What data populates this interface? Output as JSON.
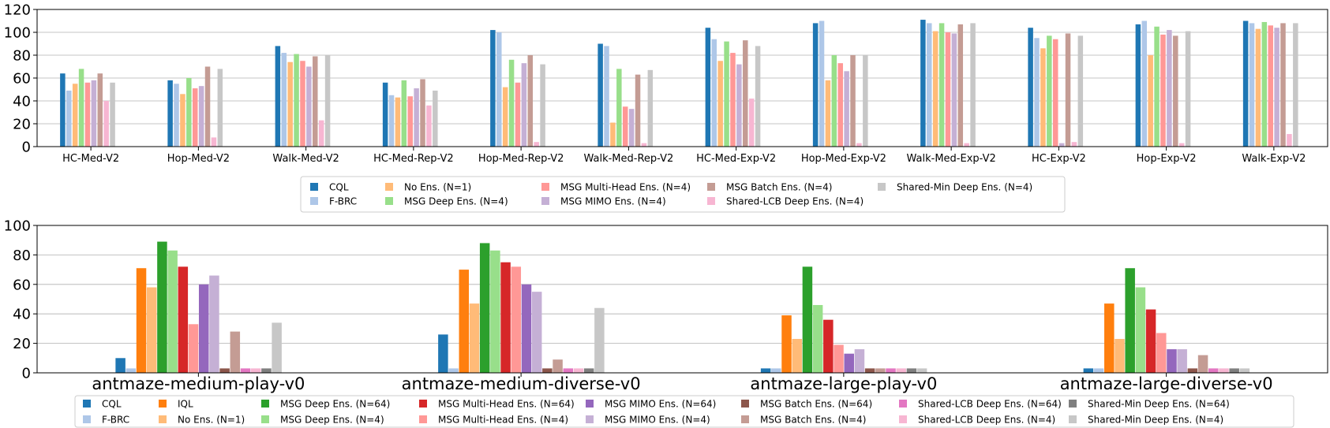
{
  "chart_data": [
    {
      "type": "bar",
      "title": "",
      "xlabel": "",
      "ylabel": "",
      "ylim": [
        0,
        120
      ],
      "yticks": [
        0,
        20,
        40,
        60,
        80,
        100,
        120
      ],
      "grid": true,
      "legend": "bottom-center",
      "categories": [
        "HC-Med-V2",
        "Hop-Med-V2",
        "Walk-Med-V2",
        "HC-Med-Rep-V2",
        "Hop-Med-Rep-V2",
        "Walk-Med-Rep-V2",
        "HC-Med-Exp-V2",
        "Hop-Med-Exp-V2",
        "Walk-Med-Exp-V2",
        "HC-Exp-V2",
        "Hop-Exp-V2",
        "Walk-Exp-V2"
      ],
      "series": [
        {
          "name": "CQL",
          "color": "#1f77b4",
          "values": [
            64,
            58,
            88,
            56,
            102,
            90,
            104,
            108,
            111,
            104,
            107,
            110
          ]
        },
        {
          "name": "F-BRC",
          "color": "#aec7e8",
          "values": [
            49,
            55,
            82,
            45,
            100,
            88,
            94,
            110,
            108,
            95,
            110,
            108
          ]
        },
        {
          "name": "No Ens. (N=1)",
          "color": "#ffbb78",
          "values": [
            55,
            46,
            74,
            43,
            52,
            21,
            75,
            58,
            101,
            86,
            80,
            103
          ]
        },
        {
          "name": "MSG Deep Ens. (N=4)",
          "color": "#98df8a",
          "values": [
            68,
            60,
            81,
            58,
            76,
            68,
            92,
            80,
            108,
            97,
            105,
            109
          ]
        },
        {
          "name": "MSG Multi-Head Ens. (N=4)",
          "color": "#ff9896",
          "values": [
            56,
            51,
            75,
            44,
            56,
            35,
            82,
            73,
            100,
            94,
            98,
            106
          ]
        },
        {
          "name": "MSG MIMO Ens. (N=4)",
          "color": "#c5b0d5",
          "values": [
            58,
            53,
            70,
            51,
            73,
            33,
            72,
            66,
            99,
            3,
            102,
            104
          ]
        },
        {
          "name": "MSG Batch Ens. (N=4)",
          "color": "#c49c94",
          "values": [
            64,
            70,
            79,
            59,
            80,
            63,
            93,
            80,
            107,
            99,
            97,
            108
          ]
        },
        {
          "name": "Shared-LCB Deep Ens. (N=4)",
          "color": "#f7b6d2",
          "values": [
            40,
            8,
            23,
            36,
            4,
            3,
            42,
            3,
            3,
            4,
            3,
            11
          ]
        },
        {
          "name": "Shared-Min Deep Ens. (N=4)",
          "color": "#c7c7c7",
          "values": [
            56,
            68,
            80,
            49,
            72,
            67,
            88,
            80,
            108,
            97,
            101,
            108
          ]
        }
      ]
    },
    {
      "type": "bar",
      "title": "",
      "xlabel": "",
      "ylabel": "",
      "ylim": [
        0,
        100
      ],
      "yticks": [
        0,
        20,
        40,
        60,
        80,
        100
      ],
      "grid": true,
      "legend": "bottom-center",
      "categories": [
        "antmaze-medium-play-v0",
        "antmaze-medium-diverse-v0",
        "antmaze-large-play-v0",
        "antmaze-large-diverse-v0"
      ],
      "series": [
        {
          "name": "CQL",
          "color": "#1f77b4",
          "values": [
            10,
            26,
            3,
            3
          ]
        },
        {
          "name": "F-BRC",
          "color": "#aec7e8",
          "values": [
            3,
            3,
            3,
            3
          ]
        },
        {
          "name": "IQL",
          "color": "#ff7f0e",
          "values": [
            71,
            70,
            39,
            47
          ]
        },
        {
          "name": "No Ens. (N=1)",
          "color": "#ffbb78",
          "values": [
            58,
            47,
            23,
            23
          ]
        },
        {
          "name": "MSG Deep Ens. (N=64)",
          "color": "#2ca02c",
          "values": [
            89,
            88,
            72,
            71
          ]
        },
        {
          "name": "MSG Deep Ens. (N=4)",
          "color": "#98df8a",
          "values": [
            83,
            83,
            46,
            58
          ]
        },
        {
          "name": "MSG Multi-Head Ens. (N=64)",
          "color": "#d62728",
          "values": [
            72,
            75,
            36,
            43
          ]
        },
        {
          "name": "MSG Multi-Head Ens. (N=4)",
          "color": "#ff9896",
          "values": [
            33,
            72,
            19,
            27
          ]
        },
        {
          "name": "MSG MIMO Ens. (N=64)",
          "color": "#9467bd",
          "values": [
            60,
            60,
            13,
            16
          ]
        },
        {
          "name": "MSG MIMO Ens. (N=4)",
          "color": "#c5b0d5",
          "values": [
            66,
            55,
            16,
            16
          ]
        },
        {
          "name": "MSG Batch Ens. (N=64)",
          "color": "#8c564b",
          "values": [
            3,
            3,
            3,
            3
          ]
        },
        {
          "name": "MSG Batch Ens. (N=4)",
          "color": "#c49c94",
          "values": [
            28,
            9,
            3,
            12
          ]
        },
        {
          "name": "Shared-LCB Deep Ens. (N=64)",
          "color": "#e377c2",
          "values": [
            3,
            3,
            3,
            3
          ]
        },
        {
          "name": "Shared-LCB Deep Ens. (N=4)",
          "color": "#f7b6d2",
          "values": [
            3,
            3,
            3,
            3
          ]
        },
        {
          "name": "Shared-Min Deep Ens. (N=64)",
          "color": "#7f7f7f",
          "values": [
            3,
            3,
            3,
            3
          ]
        },
        {
          "name": "Shared-Min Deep Ens. (N=4)",
          "color": "#c7c7c7",
          "values": [
            34,
            44,
            3,
            3
          ]
        }
      ]
    }
  ]
}
